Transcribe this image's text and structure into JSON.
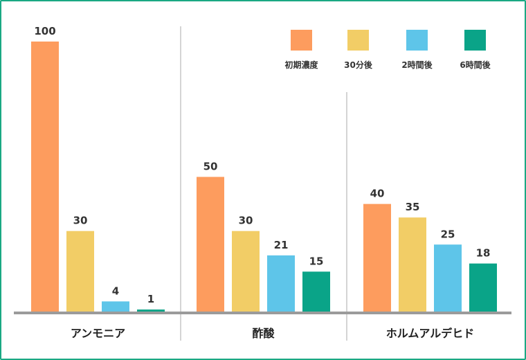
{
  "chart_data": {
    "type": "bar",
    "categories": [
      "アンモニア",
      "酢酸",
      "ホルムアルデヒド"
    ],
    "series": [
      {
        "name": "初期濃度",
        "color": "#fd9c5e",
        "values": [
          100,
          50,
          40
        ]
      },
      {
        "name": "30分後",
        "color": "#f2cd66",
        "values": [
          30,
          30,
          35
        ]
      },
      {
        "name": "2時間後",
        "color": "#5ec5e9",
        "values": [
          4,
          21,
          25
        ]
      },
      {
        "name": "6時間後",
        "color": "#0aa488",
        "values": [
          1,
          15,
          18
        ]
      }
    ],
    "ylim": [
      0,
      100
    ],
    "legend_position": "top-right",
    "grid": false
  },
  "colors": {
    "border": "#1aa883",
    "baseline": "#9b9b9b",
    "separator": "#aaaaaa"
  }
}
